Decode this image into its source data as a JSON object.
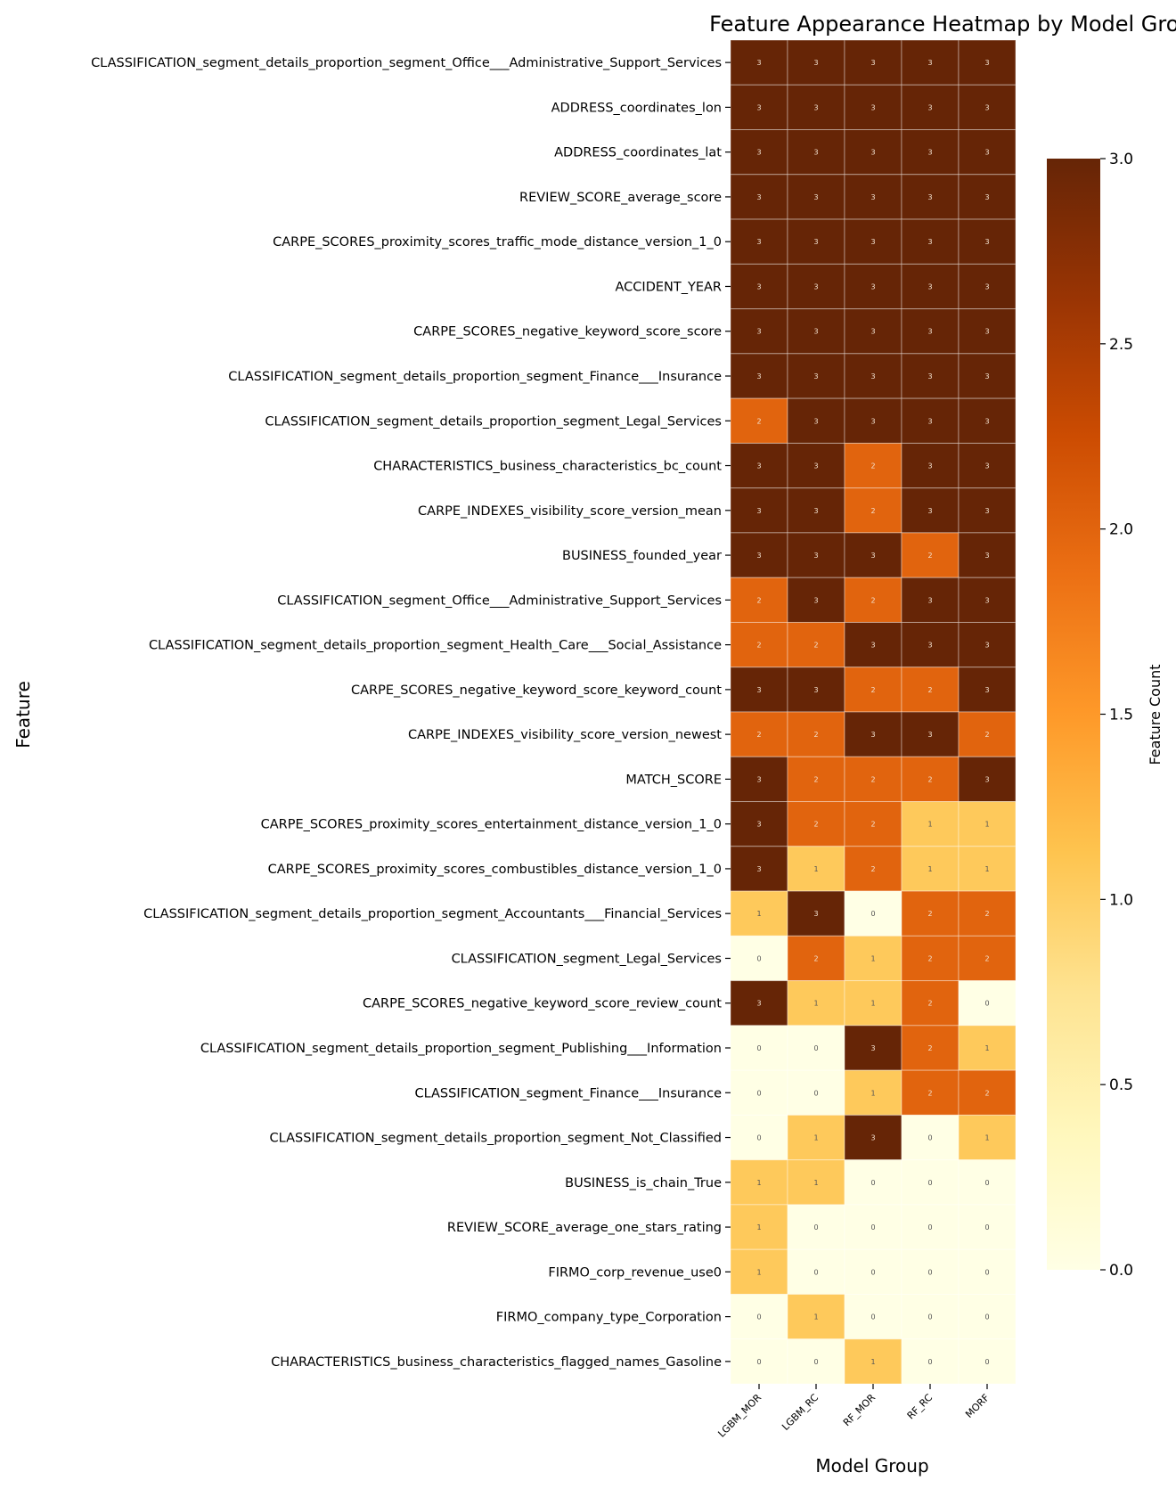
{
  "chart_data": {
    "type": "heatmap",
    "title": "Feature Appearance Heatmap by Model Group",
    "xlabel": "Model Group",
    "ylabel": "Feature",
    "colorbar_label": "Feature Count",
    "colormap": "YlOrBr",
    "vmin": 0,
    "vmax": 3,
    "colorbar_ticks": [
      "0.0",
      "0.5",
      "1.0",
      "1.5",
      "2.0",
      "2.5",
      "3.0"
    ],
    "colors": {
      "0": "#ffffe5",
      "1": "#fec95b",
      "2": "#e1640e",
      "3": "#662506"
    },
    "columns": [
      "LGBM_MOR",
      "LGBM_RC",
      "RF_MOR",
      "RF_RC",
      "MORF"
    ],
    "rows": [
      "CLASSIFICATION_segment_details_proportion_segment_Office___Administrative_Support_Services",
      "ADDRESS_coordinates_lon",
      "ADDRESS_coordinates_lat",
      "REVIEW_SCORE_average_score",
      "CARPE_SCORES_proximity_scores_traffic_mode_distance_version_1_0",
      "ACCIDENT_YEAR",
      "CARPE_SCORES_negative_keyword_score_score",
      "CLASSIFICATION_segment_details_proportion_segment_Finance___Insurance",
      "CLASSIFICATION_segment_details_proportion_segment_Legal_Services",
      "CHARACTERISTICS_business_characteristics_bc_count",
      "CARPE_INDEXES_visibility_score_version_mean",
      "BUSINESS_founded_year",
      "CLASSIFICATION_segment_Office___Administrative_Support_Services",
      "CLASSIFICATION_segment_details_proportion_segment_Health_Care___Social_Assistance",
      "CARPE_SCORES_negative_keyword_score_keyword_count",
      "CARPE_INDEXES_visibility_score_version_newest",
      "MATCH_SCORE",
      "CARPE_SCORES_proximity_scores_entertainment_distance_version_1_0",
      "CARPE_SCORES_proximity_scores_combustibles_distance_version_1_0",
      "CLASSIFICATION_segment_details_proportion_segment_Accountants___Financial_Services",
      "CLASSIFICATION_segment_Legal_Services",
      "CARPE_SCORES_negative_keyword_score_review_count",
      "CLASSIFICATION_segment_details_proportion_segment_Publishing___Information",
      "CLASSIFICATION_segment_Finance___Insurance",
      "CLASSIFICATION_segment_details_proportion_segment_Not_Classified",
      "BUSINESS_is_chain_True",
      "REVIEW_SCORE_average_one_stars_rating",
      "FIRMO_corp_revenue_use0",
      "FIRMO_company_type_Corporation",
      "CHARACTERISTICS_business_characteristics_flagged_names_Gasoline"
    ],
    "values": [
      [
        3,
        3,
        3,
        3,
        3
      ],
      [
        3,
        3,
        3,
        3,
        3
      ],
      [
        3,
        3,
        3,
        3,
        3
      ],
      [
        3,
        3,
        3,
        3,
        3
      ],
      [
        3,
        3,
        3,
        3,
        3
      ],
      [
        3,
        3,
        3,
        3,
        3
      ],
      [
        3,
        3,
        3,
        3,
        3
      ],
      [
        3,
        3,
        3,
        3,
        3
      ],
      [
        2,
        3,
        3,
        3,
        3
      ],
      [
        3,
        3,
        2,
        3,
        3
      ],
      [
        3,
        3,
        2,
        3,
        3
      ],
      [
        3,
        3,
        3,
        2,
        3
      ],
      [
        2,
        3,
        2,
        3,
        3
      ],
      [
        2,
        2,
        3,
        3,
        3
      ],
      [
        3,
        3,
        2,
        2,
        3
      ],
      [
        2,
        2,
        3,
        3,
        2
      ],
      [
        3,
        2,
        2,
        2,
        3
      ],
      [
        3,
        2,
        2,
        1,
        1
      ],
      [
        3,
        1,
        2,
        1,
        1
      ],
      [
        1,
        3,
        0,
        2,
        2
      ],
      [
        0,
        2,
        1,
        2,
        2
      ],
      [
        3,
        1,
        1,
        2,
        0
      ],
      [
        0,
        0,
        3,
        2,
        1
      ],
      [
        0,
        0,
        1,
        2,
        2
      ],
      [
        0,
        1,
        3,
        0,
        1
      ],
      [
        1,
        1,
        0,
        0,
        0
      ],
      [
        1,
        0,
        0,
        0,
        0
      ],
      [
        1,
        0,
        0,
        0,
        0
      ],
      [
        0,
        1,
        0,
        0,
        0
      ],
      [
        0,
        0,
        1,
        0,
        0
      ]
    ]
  }
}
